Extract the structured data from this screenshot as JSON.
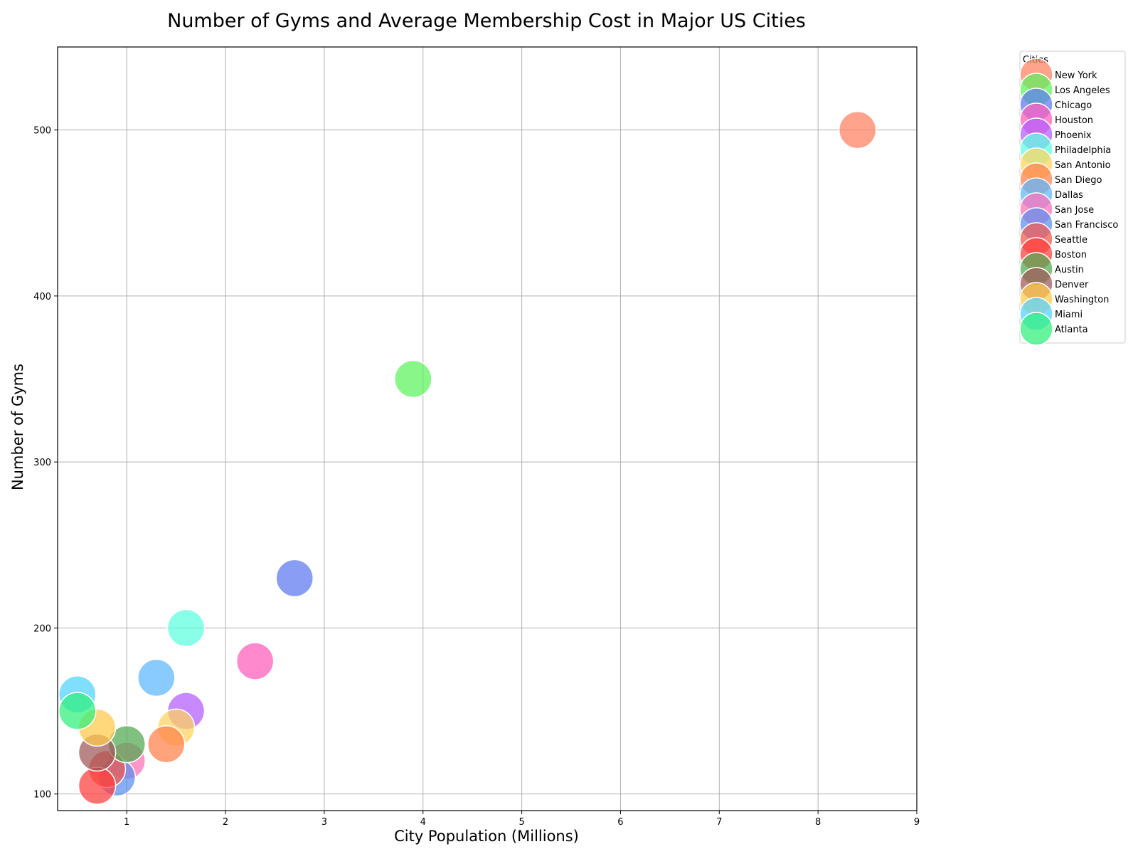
{
  "chart_data": {
    "type": "scatter",
    "title": "Number of Gyms and Average Membership Cost in Major US Cities",
    "xlabel": "City Population (Millions)",
    "ylabel": "Number of Gyms",
    "xlim": [
      0.3,
      9
    ],
    "ylim": [
      90,
      550
    ],
    "xticks": [
      1,
      2,
      3,
      4,
      5,
      6,
      7,
      8,
      9
    ],
    "yticks": [
      100,
      200,
      300,
      400,
      500
    ],
    "grid": true,
    "legend": {
      "title": "Cities",
      "placement": "outside-top-right"
    },
    "series": [
      {
        "name": "New York",
        "x": 8.4,
        "y": 500,
        "color": "#FF7F61"
      },
      {
        "name": "Los Angeles",
        "x": 3.9,
        "y": 350,
        "color": "#5CF25C"
      },
      {
        "name": "Chicago",
        "x": 2.7,
        "y": 230,
        "color": "#5B77F0"
      },
      {
        "name": "Houston",
        "x": 2.3,
        "y": 180,
        "color": "#FF5CB8"
      },
      {
        "name": "Phoenix",
        "x": 1.6,
        "y": 150,
        "color": "#B35CFF"
      },
      {
        "name": "Philadelphia",
        "x": 1.6,
        "y": 200,
        "color": "#5CFFDF"
      },
      {
        "name": "San Antonio",
        "x": 1.5,
        "y": 140,
        "color": "#FFD45C"
      },
      {
        "name": "San Diego",
        "x": 1.4,
        "y": 130,
        "color": "#FF7F4A"
      },
      {
        "name": "Dallas",
        "x": 1.3,
        "y": 170,
        "color": "#5CB5FF"
      },
      {
        "name": "San Jose",
        "x": 1.0,
        "y": 120,
        "color": "#FF6FB5"
      },
      {
        "name": "San Francisco",
        "x": 0.9,
        "y": 110,
        "color": "#5B8DEF"
      },
      {
        "name": "Seattle",
        "x": 0.8,
        "y": 115,
        "color": "#F2574A"
      },
      {
        "name": "Boston",
        "x": 0.7,
        "y": 105,
        "color": "#FF3B3B"
      },
      {
        "name": "Austin",
        "x": 1.0,
        "y": 130,
        "color": "#4FA84F"
      },
      {
        "name": "Denver",
        "x": 0.7,
        "y": 125,
        "color": "#A05656"
      },
      {
        "name": "Washington",
        "x": 0.7,
        "y": 140,
        "color": "#FFC94A"
      },
      {
        "name": "Miami",
        "x": 0.5,
        "y": 160,
        "color": "#4FD2FF"
      },
      {
        "name": "Atlanta",
        "x": 0.5,
        "y": 150,
        "color": "#2EF07A"
      }
    ]
  }
}
